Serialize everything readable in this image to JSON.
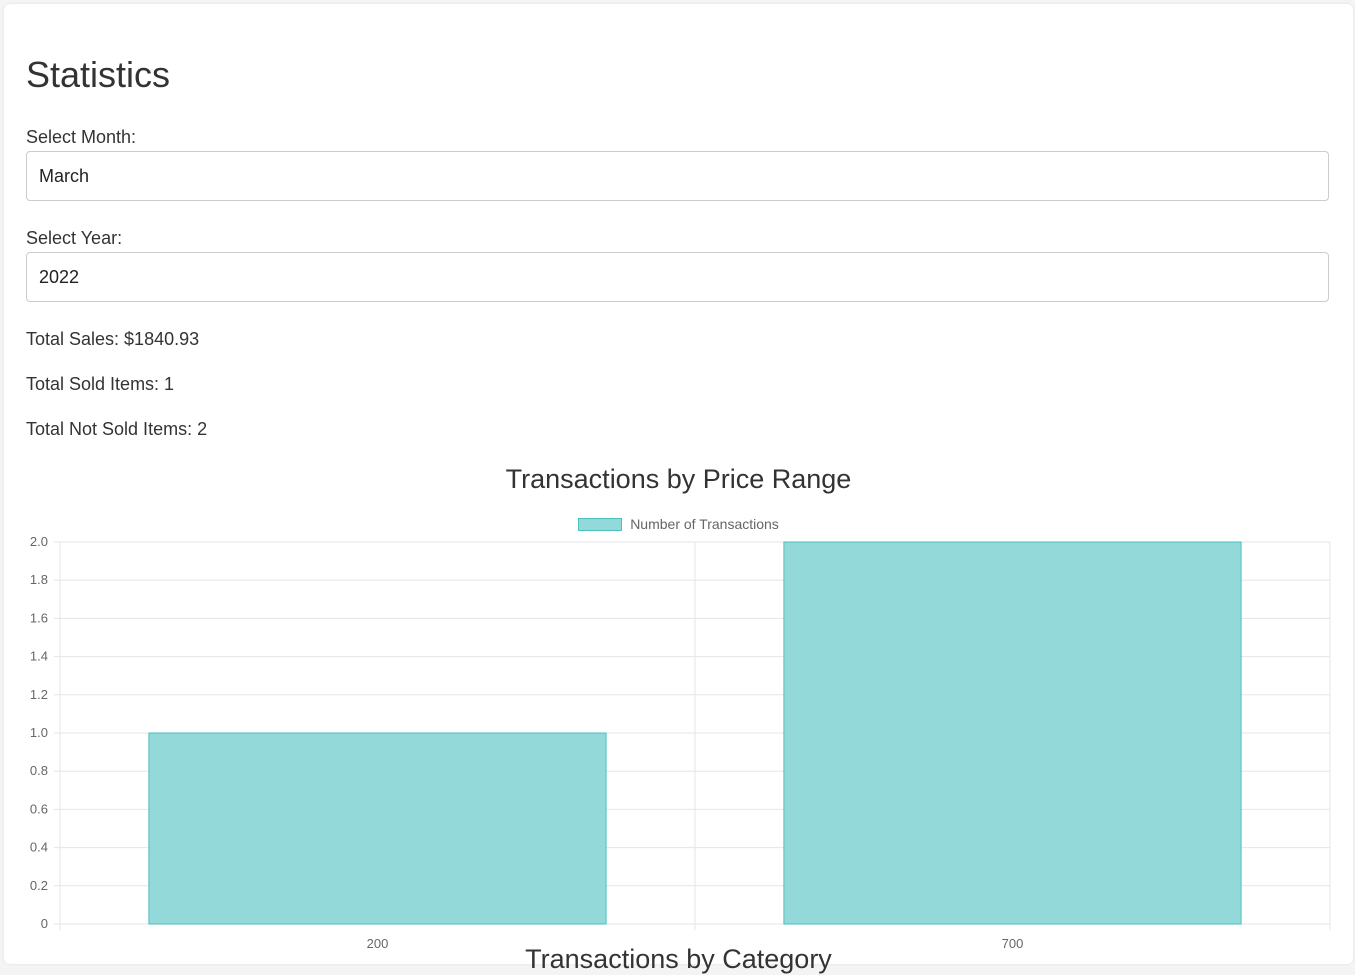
{
  "page": {
    "title": "Statistics"
  },
  "filters": {
    "month_label": "Select Month:",
    "month_value": "March",
    "year_label": "Select Year:",
    "year_value": "2022"
  },
  "stats": {
    "total_sales": "Total Sales: $1840.93",
    "total_sold": "Total Sold Items: 1",
    "total_not_sold": "Total Not Sold Items: 2"
  },
  "colors": {
    "bar_fill": "#94d9d9",
    "bar_stroke": "#4bc0c0",
    "grid": "#e5e5e5",
    "tick_text": "#666666"
  },
  "chart_data": {
    "type": "bar",
    "title": "Transactions by Price Range",
    "categories": [
      "200",
      "700"
    ],
    "series": [
      {
        "name": "Number of Transactions",
        "values": [
          1,
          2
        ]
      }
    ],
    "ylim": [
      0,
      2
    ],
    "yticks": [
      "0",
      "0.2",
      "0.4",
      "0.6",
      "0.8",
      "1.0",
      "1.2",
      "1.4",
      "1.6",
      "1.8",
      "2.0"
    ],
    "grid": true,
    "legend": "top-center",
    "xlabel": "",
    "ylabel": ""
  },
  "next_chart": {
    "title": "Transactions by Category"
  }
}
